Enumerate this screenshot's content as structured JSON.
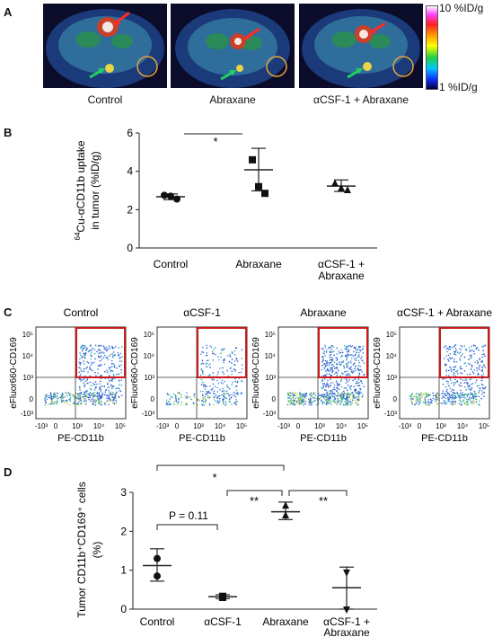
{
  "panel_a": {
    "label": "A",
    "captions": [
      "Control",
      "Abraxane",
      "αCSF-1 + Abraxane"
    ],
    "colorbar": {
      "top_label": "10 %ID/g",
      "bottom_label": "1 %ID/g"
    }
  },
  "panel_b": {
    "label": "B",
    "ylabel_parts": {
      "sup": "64",
      "rest": "Cu-αCD11b uptake",
      "line2": "in tumor (%ID/g)"
    },
    "categories": [
      "Control",
      "Abraxane",
      "αCSF-1 +",
      "Abraxane"
    ],
    "sig_star": "*"
  },
  "panel_c": {
    "label": "C",
    "titles": [
      "Control",
      "αCSF-1",
      "Abraxane",
      "αCSF-1 + Abraxane"
    ],
    "xlabel": "PE-CD11b",
    "ylabel": "eFluor660-CD169",
    "y_ticks": [
      "10⁵",
      "10⁴",
      "10³",
      "0",
      "-10³"
    ],
    "x_ticks": [
      "-10³",
      "0",
      "10³",
      "10⁴",
      "10⁵"
    ]
  },
  "panel_d": {
    "label": "D",
    "ylabel_line1": "Tumor CD11b⁺CD169⁺ cells",
    "ylabel_line2": "(%)",
    "categories": [
      "Control",
      "αCSF-1",
      "Abraxane",
      "αCSF-1 +",
      "Abraxane"
    ],
    "sig": {
      "star1": "*",
      "star2": "**",
      "star3": "**",
      "p_text": "P = 0.11"
    }
  },
  "chart_data": [
    {
      "type": "scatter",
      "id": "panel_b",
      "categories": [
        "Control",
        "Abraxane",
        "αCSF-1 + Abraxane"
      ],
      "points": [
        [
          2.75,
          2.7,
          2.55
        ],
        [
          4.6,
          3.2,
          2.85
        ],
        [
          3.35,
          3.1,
          3.0
        ]
      ],
      "markers": [
        "circle",
        "square",
        "triangle"
      ],
      "mean": [
        2.67,
        4.08,
        3.23
      ],
      "err_high": [
        2.82,
        5.2,
        3.55
      ],
      "err_low": [
        2.52,
        2.98,
        2.95
      ],
      "ylim": [
        0,
        6
      ],
      "yticks": [
        0,
        2,
        4,
        6
      ]
    },
    {
      "type": "scatter",
      "id": "panel_d",
      "categories": [
        "Control",
        "αCSF-1",
        "Abraxane",
        "αCSF-1 + Abraxane"
      ],
      "points": [
        [
          1.3,
          0.85
        ],
        [
          0.33,
          0.3
        ],
        [
          2.65,
          2.4
        ],
        [
          0.95,
          0.0
        ]
      ],
      "markers": [
        "circle",
        "square",
        "triangle-up",
        "triangle-down"
      ],
      "mean": [
        1.12,
        0.32,
        2.5,
        0.55
      ],
      "err_high": [
        1.55,
        0.37,
        2.75,
        1.08
      ],
      "err_low": [
        0.72,
        0.27,
        2.3,
        0.0
      ],
      "ylim": [
        0,
        3
      ],
      "yticks": [
        0,
        1,
        2,
        3
      ]
    }
  ]
}
